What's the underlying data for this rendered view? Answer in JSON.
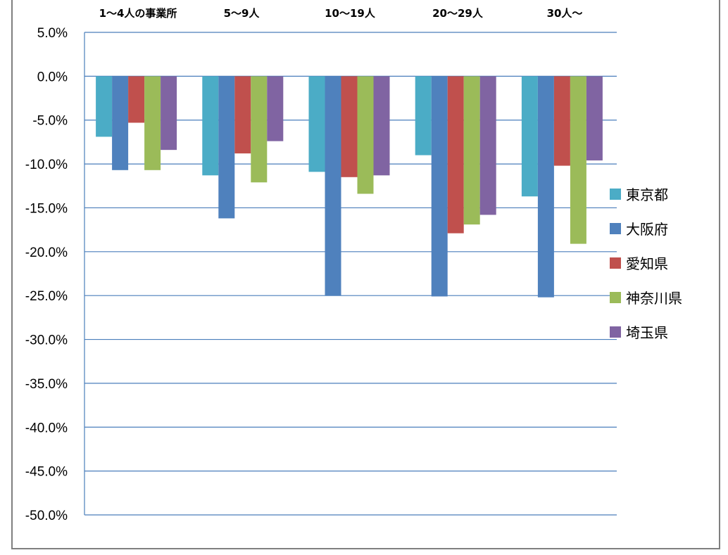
{
  "chart_data": {
    "type": "bar",
    "title": "",
    "xlabel": "",
    "ylabel": "",
    "ylim": [
      -50,
      5
    ],
    "ytick_step": 5,
    "ytick_labels": [
      "5.0%",
      "0.0%",
      "-5.0%",
      "-10.0%",
      "-15.0%",
      "-20.0%",
      "-25.0%",
      "-30.0%",
      "-35.0%",
      "-40.0%",
      "-45.0%",
      "-50.0%"
    ],
    "categories": [
      "1～4人の事業所",
      "5～9人",
      "10～19人",
      "20～29人",
      "30人～"
    ],
    "category_label_position": "top",
    "grid": true,
    "legend_position": "right",
    "series": [
      {
        "name": "東京都",
        "color": "#4bacc6",
        "values": [
          -6.9,
          -11.3,
          -10.9,
          -9.0,
          -13.7
        ]
      },
      {
        "name": "大阪府",
        "color": "#4f81bd",
        "values": [
          -10.7,
          -16.2,
          -25.0,
          -25.1,
          -25.2
        ]
      },
      {
        "name": "愛知県",
        "color": "#c0504d",
        "values": [
          -5.3,
          -8.8,
          -11.5,
          -17.9,
          -10.2
        ]
      },
      {
        "name": "神奈川県",
        "color": "#9bbb59",
        "values": [
          -10.7,
          -12.1,
          -13.4,
          -16.9,
          -19.1
        ]
      },
      {
        "name": "埼玉県",
        "color": "#8064a2",
        "values": [
          -8.4,
          -7.4,
          -11.3,
          -15.8,
          -9.6
        ]
      }
    ]
  }
}
